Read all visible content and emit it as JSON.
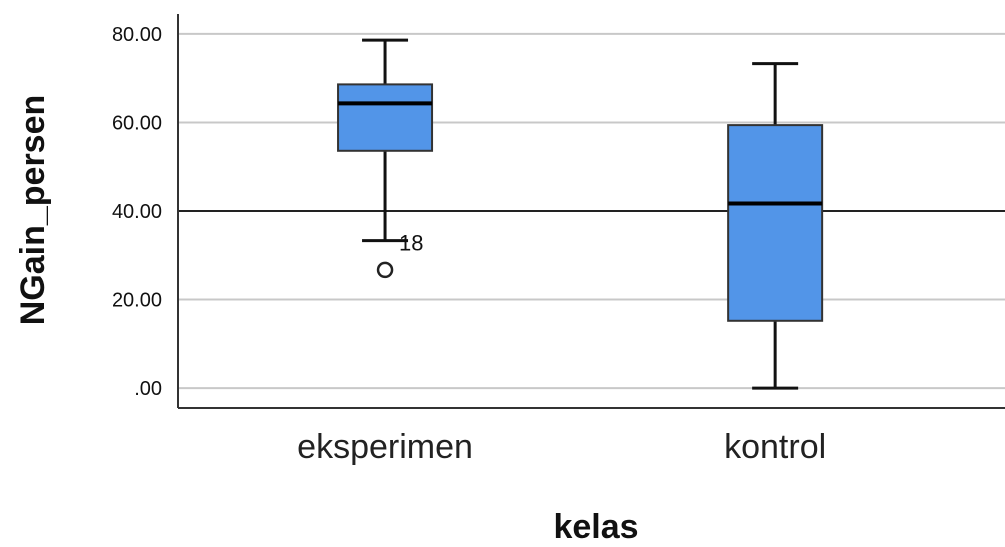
{
  "chart_data": {
    "type": "box",
    "xlabel": "kelas",
    "ylabel": "NGain_persen",
    "categories": [
      "eksperimen",
      "kontrol"
    ],
    "ylim": [
      -4.5,
      84.5
    ],
    "yticks": [
      0,
      20,
      40,
      60,
      80
    ],
    "ytick_labels": [
      ".00",
      "20.00",
      "40.00",
      "60.00",
      "80.00"
    ],
    "reference_line": 40,
    "grid": true,
    "box_color": "#5295e8",
    "boxes": [
      {
        "category": "eksperimen",
        "min": 33.3,
        "q1": 53.6,
        "median": 64.3,
        "q3": 68.6,
        "max": 78.6,
        "outliers": [
          {
            "value": 26.7,
            "label": "18"
          }
        ]
      },
      {
        "category": "kontrol",
        "min": 0.0,
        "q1": 15.2,
        "median": 41.7,
        "q3": 59.4,
        "max": 73.3,
        "outliers": []
      }
    ]
  }
}
